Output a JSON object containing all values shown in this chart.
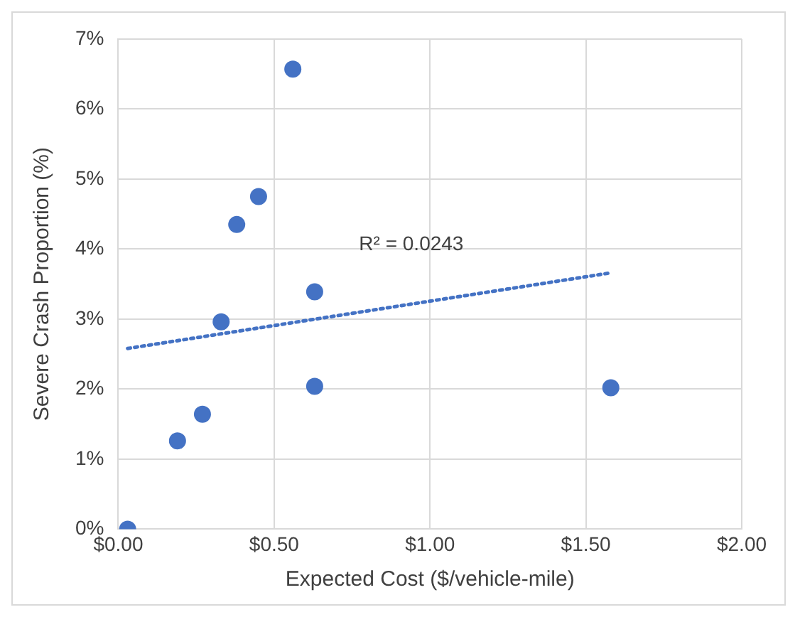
{
  "chart_data": {
    "type": "scatter",
    "xlabel": "Expected Cost ($/vehicle-mile)",
    "ylabel": "Severe Crash Proportion (%)",
    "series": [
      {
        "color": "#4472c4",
        "marker": "circle",
        "x": [
          0.03,
          0.19,
          0.27,
          0.33,
          0.38,
          0.45,
          0.56,
          0.63,
          0.63,
          1.58
        ],
        "values": [
          0,
          1.26,
          1.64,
          2.96,
          4.35,
          4.75,
          6.57,
          3.39,
          2.04,
          2.02
        ]
      },
      {
        "type": "line",
        "color": "#4472c4",
        "marker": "none",
        "line_style": "dotted",
        "x": [
          0.03,
          1.58
        ],
        "values": [
          2.58,
          3.66
        ]
      }
    ],
    "xlim": [
      0,
      2
    ],
    "xticks": [
      {
        "value": 0,
        "label": "$0.00"
      },
      {
        "value": 0.5,
        "label": "$0.50"
      },
      {
        "value": 1,
        "label": "$1.00"
      },
      {
        "value": 1.5,
        "label": "$1.50"
      },
      {
        "value": 2,
        "label": "$2.00"
      }
    ],
    "ylim": [
      0,
      7
    ],
    "yticks": [
      {
        "value": 0,
        "label": "0%"
      },
      {
        "value": 1,
        "label": "1%"
      },
      {
        "value": 2,
        "label": "2%"
      },
      {
        "value": 3,
        "label": "3%"
      },
      {
        "value": 4,
        "label": "4%"
      },
      {
        "value": 5,
        "label": "5%"
      },
      {
        "value": 6,
        "label": "6%"
      },
      {
        "value": 7,
        "label": "7%"
      }
    ],
    "grid": true,
    "legend": false,
    "annotations": [
      "R² = 0.0243"
    ]
  }
}
